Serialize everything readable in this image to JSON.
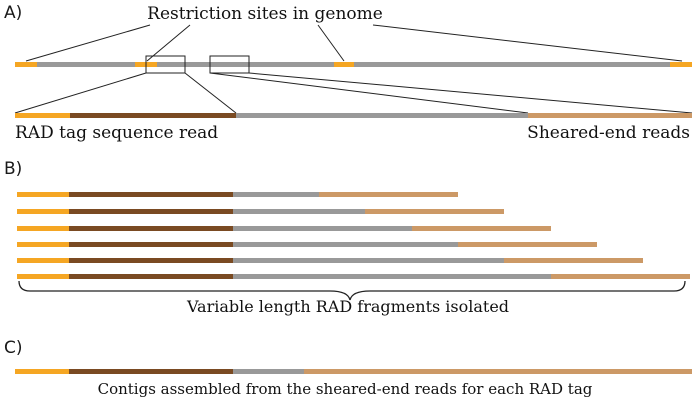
{
  "colors": {
    "restriction_site": "#f5a623",
    "rad_tag_read": "#7a4a22",
    "genome": "#999999",
    "sheared_read": "#cc9966",
    "line": "#222222"
  },
  "panel_a": {
    "label": "A)",
    "restriction_title": "Restriction sites in genome",
    "rad_tag_label": "RAD tag sequence read",
    "sheared_label": "Sheared-end reads"
  },
  "panel_b": {
    "label": "B)",
    "caption": "Variable length RAD fragments isolated",
    "fragment_count": 6
  },
  "panel_c": {
    "label": "C)",
    "caption": "Contigs assembled from the sheared-end reads for each RAD tag"
  }
}
